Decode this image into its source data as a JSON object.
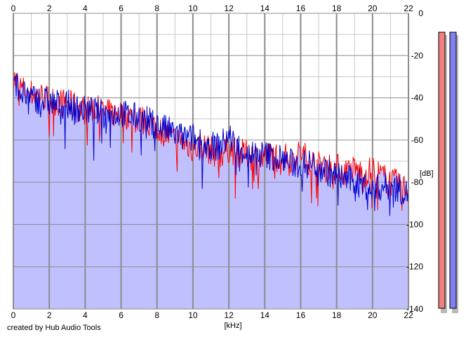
{
  "footer": "created by Hub Audio Tools",
  "colors": {
    "background": "#ffffff",
    "fill": "#c0c0ff",
    "grid_major": "#8c8c8c",
    "grid_minor": "#c8c8c8",
    "series_left": "#ff0000",
    "series_right": "#0000cc",
    "meter_left": "#f08080",
    "meter_right": "#8080f0"
  },
  "chart_data": {
    "type": "line",
    "xlabel": "[kHz]",
    "ylabel": "[dB]",
    "xlim": [
      0,
      22
    ],
    "ylim": [
      -140,
      0
    ],
    "x_ticks": [
      "0",
      "2",
      "4",
      "6",
      "8",
      "10",
      "12",
      "14",
      "16",
      "18",
      "20",
      "22"
    ],
    "y_ticks": [
      "0",
      "-20",
      "-40",
      "-60",
      "-80",
      "-100",
      "-120",
      "-140"
    ],
    "grid": true,
    "area_fill": true,
    "series": [
      {
        "color": "#ff0000",
        "x": [
          0,
          0.2,
          0.5,
          1,
          1.5,
          2,
          2.5,
          3,
          3.5,
          4,
          4.5,
          5,
          5.5,
          6,
          6.5,
          7,
          7.5,
          8,
          8.5,
          9,
          9.5,
          10,
          10.5,
          11,
          11.5,
          12,
          12.5,
          13,
          13.5,
          14,
          14.5,
          15,
          15.5,
          16,
          16.5,
          17,
          17.5,
          18,
          18.5,
          19,
          19.5,
          20,
          20.5,
          21,
          21.5,
          22
        ],
        "y": [
          -30,
          -33,
          -36,
          -38,
          -39,
          -41,
          -42,
          -43,
          -44,
          -46,
          -45,
          -47,
          -48,
          -47,
          -49,
          -50,
          -52,
          -54,
          -57,
          -60,
          -61,
          -64,
          -63,
          -65,
          -67,
          -64,
          -66,
          -67,
          -68,
          -68,
          -67,
          -68,
          -69,
          -66,
          -70,
          -72,
          -72,
          -73,
          -75,
          -74,
          -76,
          -74,
          -77,
          -80,
          -81,
          -84
        ]
      },
      {
        "color": "#0000cc",
        "x": [
          0,
          0.2,
          0.5,
          1,
          1.5,
          2,
          2.5,
          3,
          3.5,
          4,
          4.5,
          5,
          5.5,
          6,
          6.5,
          7,
          7.5,
          8,
          8.5,
          9,
          9.5,
          10,
          10.5,
          11,
          11.5,
          12,
          12.5,
          13,
          13.5,
          14,
          14.5,
          15,
          15.5,
          16,
          16.5,
          17,
          17.5,
          18,
          18.5,
          19,
          19.5,
          20,
          20.5,
          21,
          21.5,
          22
        ],
        "y": [
          -25,
          -34,
          -38,
          -40,
          -41,
          -42,
          -43,
          -43,
          -45,
          -46,
          -46,
          -48,
          -48,
          -47,
          -49,
          -49,
          -51,
          -53,
          -55,
          -57,
          -59,
          -59,
          -62,
          -63,
          -63,
          -58,
          -63,
          -66,
          -67,
          -67,
          -68,
          -69,
          -71,
          -72,
          -71,
          -72,
          -75,
          -77,
          -78,
          -80,
          -81,
          -84,
          -82,
          -82,
          -83,
          -86
        ]
      }
    ],
    "meters": [
      {
        "color": "#f08080",
        "level": 1.0
      },
      {
        "color": "#8080f0",
        "level": 1.0
      }
    ]
  }
}
